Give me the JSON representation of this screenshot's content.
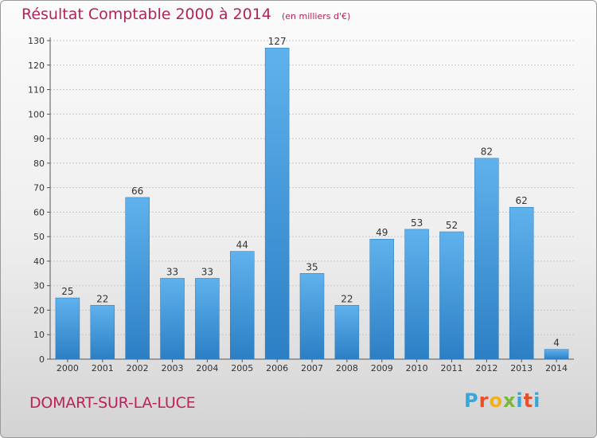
{
  "header": {
    "title": "Résultat Comptable 2000 à 2014",
    "subtitle": "(en milliers d'€)"
  },
  "footer": {
    "commune": "DOMART-SUR-LA-LUCE",
    "logo_text": "Proxiti"
  },
  "chart_data": {
    "type": "bar",
    "title": "Résultat Comptable 2000 à 2014",
    "subtitle": "(en milliers d'€)",
    "categories": [
      "2000",
      "2001",
      "2002",
      "2003",
      "2004",
      "2005",
      "2006",
      "2007",
      "2008",
      "2009",
      "2010",
      "2011",
      "2012",
      "2013",
      "2014"
    ],
    "values": [
      25,
      22,
      66,
      33,
      33,
      44,
      127,
      35,
      22,
      49,
      53,
      52,
      82,
      62,
      4
    ],
    "ylim": [
      0,
      130
    ],
    "yticks": [
      0,
      10,
      20,
      30,
      40,
      50,
      60,
      70,
      80,
      90,
      100,
      110,
      120,
      130
    ],
    "grid": true,
    "bar_color": "#3a95d6",
    "accent_color": "#b0245a"
  }
}
